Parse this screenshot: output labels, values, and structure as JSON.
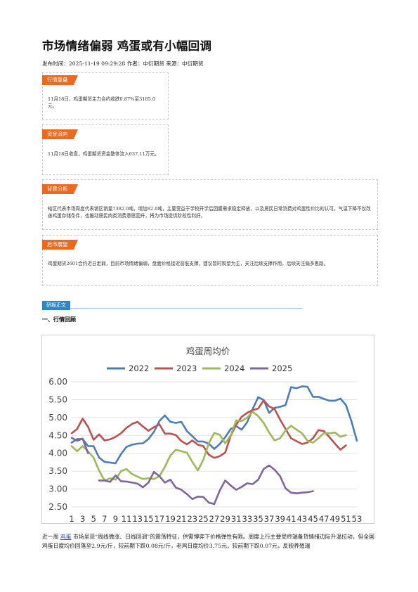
{
  "article": {
    "title": "市场情绪偏弱 鸡蛋或有小幅回调",
    "meta": "发布时间：2025-11-19 09:29:28 作者：中衍期货 来源：中衍期货"
  },
  "boxes": [
    {
      "tag": "行情复盘",
      "text": "11月18日，鸡蛋期货主力合约收跌0.87%至3185.0元。"
    },
    {
      "tag": "资金流向",
      "text": "11月18日收盘，鸡蛋期货资金整体流入637.11万元。"
    },
    {
      "tag": "背景分析",
      "text": "辖区代表市场周度代表销区销量7382.0吨，增加82.0吨，主要受益于学校开学后团膳需求稳定释放，以及居民日常消费对鸡蛋性价比的认可。气温下降不仅改善鸡蛋存储条件，也推动居民肉类消费意愿回升，将为市场提供阶段性利好。"
    },
    {
      "tag": "后市展望",
      "text": "鸡蛋期货2601合约近日走弱，目前市场情绪偏弱，盘面价格接近前低支撑，建议暂时观望为主，关注后续支撑作用，后续关注偏多思路。"
    }
  ],
  "report_tab": "研报正文",
  "section_head": "一、行情回顾",
  "paragraph": {
    "pre": "近一周 ",
    "keyword": "鸡蛋",
    "post": " 市场呈现“周线微涨、日线回调”的震荡特征，供需博弈下价格弹性有限。周度上行主要受终端备货情绪边际升温拉动，但全国鸡蛋日度均价回落至2.9元/斤，较前期下跌0.08元/斤，老鸡日度均价3.75元，较前期下跌0.07元，反映养殖端"
  },
  "colors": {
    "y2022": "#4a7ebb",
    "y2023": "#c0504d",
    "y2024": "#9bbb59",
    "y2025": "#8064a2",
    "tag": "#ec6a1e",
    "tab": "#2f86c5"
  },
  "chart_data": {
    "type": "line",
    "title": "鸡蛋周均价",
    "xlabel": "",
    "ylabel": "",
    "ylim": [
      2.5,
      6.0
    ],
    "yticks": [
      "6.00",
      "5.50",
      "5.00",
      "4.50",
      "4.00",
      "3.50",
      "3.00",
      "2.50"
    ],
    "xticks": [
      "1",
      "3",
      "5",
      "7",
      "9",
      "11",
      "13",
      "15",
      "17",
      "19",
      "21",
      "23",
      "25",
      "27",
      "29",
      "31",
      "33",
      "35",
      "37",
      "39",
      "41",
      "43",
      "45",
      "47",
      "49",
      "51",
      "53"
    ],
    "grid": true,
    "legend": "top",
    "x": [
      1,
      2,
      3,
      4,
      5,
      6,
      7,
      8,
      9,
      10,
      11,
      12,
      13,
      14,
      15,
      16,
      17,
      18,
      19,
      20,
      21,
      22,
      23,
      24,
      25,
      26,
      27,
      28,
      29,
      30,
      31,
      32,
      33,
      34,
      35,
      36,
      37,
      38,
      39,
      40,
      41,
      42,
      43,
      44,
      45,
      46,
      47,
      48,
      49,
      50,
      51,
      52,
      53
    ],
    "series": [
      {
        "name": "2022",
        "color": "#4a7ebb",
        "values": [
          4.3,
          4.4,
          4.4,
          4.2,
          4.2,
          3.88,
          3.76,
          3.74,
          3.72,
          3.98,
          4.18,
          4.24,
          4.27,
          4.28,
          4.4,
          4.6,
          4.9,
          5.06,
          4.88,
          4.85,
          4.88,
          4.62,
          4.48,
          4.33,
          4.33,
          4.27,
          4.12,
          4.26,
          4.45,
          4.68,
          4.76,
          4.66,
          4.87,
          5.24,
          5.57,
          5.49,
          5.13,
          5.27,
          5.3,
          5.35,
          5.85,
          5.82,
          5.87,
          5.86,
          5.58,
          5.58,
          5.52,
          5.47,
          5.47,
          5.53,
          5.35,
          4.9,
          4.35
        ]
      },
      {
        "name": "2023",
        "color": "#c0504d",
        "values": [
          4.56,
          4.68,
          4.97,
          4.74,
          4.38,
          4.53,
          4.36,
          4.39,
          4.46,
          4.56,
          4.71,
          4.82,
          4.88,
          4.75,
          4.63,
          4.73,
          4.81,
          4.55,
          4.55,
          4.51,
          4.34,
          4.25,
          4.36,
          4.24,
          4.2,
          3.96,
          3.87,
          3.92,
          4.02,
          4.49,
          4.8,
          5.02,
          5.13,
          5.21,
          5.25,
          5.48,
          5.31,
          5.24,
          4.94,
          4.68,
          4.42,
          4.34,
          4.26,
          4.3,
          4.42,
          4.65,
          4.62,
          4.45,
          4.27,
          4.1,
          4.22,
          null,
          null
        ]
      },
      {
        "name": "2024",
        "color": "#9bbb59",
        "values": [
          4.2,
          4.06,
          4.2,
          4.05,
          3.88,
          3.52,
          3.24,
          3.3,
          3.26,
          3.5,
          3.56,
          3.42,
          3.35,
          3.28,
          3.3,
          3.28,
          3.36,
          3.62,
          3.94,
          4.1,
          4.06,
          4.02,
          3.76,
          3.52,
          3.82,
          4.28,
          4.57,
          4.52,
          4.28,
          4.5,
          4.92,
          4.9,
          5.0,
          5.16,
          5.04,
          4.85,
          4.58,
          4.36,
          4.42,
          4.64,
          4.77,
          4.66,
          4.56,
          4.35,
          4.3,
          4.42,
          4.57,
          4.56,
          4.58,
          4.46,
          4.51,
          null,
          null
        ]
      },
      {
        "name": "2025",
        "color": "#8064a2",
        "values": [
          4.43,
          4.35,
          4.41,
          4.0,
          null,
          3.24,
          3.24,
          3.2,
          3.38,
          3.22,
          3.21,
          3.18,
          3.15,
          3.05,
          3.18,
          3.48,
          3.36,
          3.18,
          3.26,
          3.04,
          2.98,
          2.86,
          2.72,
          2.79,
          2.78,
          2.62,
          2.58,
          2.96,
          3.24,
          3.1,
          2.98,
          3.06,
          3.16,
          3.14,
          3.26,
          3.56,
          3.66,
          3.54,
          3.36,
          3.02,
          2.9,
          2.88,
          2.9,
          2.91,
          2.94,
          null,
          null,
          null,
          null,
          null,
          null,
          null,
          null
        ]
      }
    ]
  }
}
